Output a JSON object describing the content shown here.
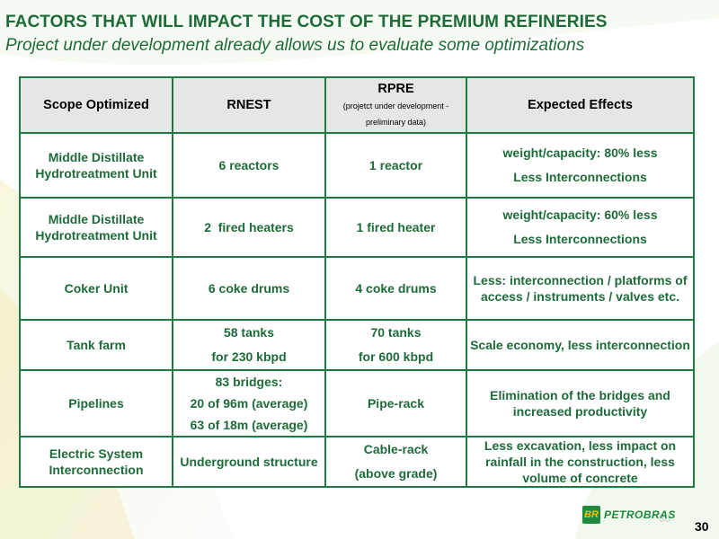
{
  "header": {
    "title": "FACTORS THAT WILL IMPACT THE COST OF THE PREMIUM REFINERIES",
    "subtitle": "Project under development already allows us to evaluate some optimizations"
  },
  "table": {
    "headers": {
      "scope": "Scope Optimized",
      "rnest": "RNEST",
      "rpre": "RPRE",
      "rpre_note": "(projetct under development - preliminary data)",
      "effects": "Expected Effects"
    },
    "rows": [
      {
        "scope": "Middle Distillate Hydrotreatment Unit",
        "rnest": [
          "6 reactors"
        ],
        "rpre": [
          "1 reactor"
        ],
        "effects": [
          "weight/capacity: 80% less",
          "Less Interconnections"
        ]
      },
      {
        "scope": "Middle Distillate Hydrotreatment Unit",
        "rnest": [
          "2  fired heaters"
        ],
        "rpre": [
          "1 fired heater"
        ],
        "effects": [
          "weight/capacity: 60% less",
          "Less Interconnections"
        ]
      },
      {
        "scope": "Coker Unit",
        "rnest": [
          "6 coke drums"
        ],
        "rpre": [
          "4 coke drums"
        ],
        "effects": [
          "Less: interconnection / platforms of access / instruments / valves etc."
        ]
      },
      {
        "scope": "Tank farm",
        "rnest": [
          "58 tanks",
          "for 230 kbpd"
        ],
        "rpre": [
          "70 tanks",
          "for 600 kbpd"
        ],
        "effects": [
          "Scale economy, less interconnection"
        ]
      },
      {
        "scope": "Pipelines",
        "rnest": [
          "83 bridges:",
          "20 of 96m (average)",
          "63 of 18m (average)"
        ],
        "rpre": [
          "Pipe-rack"
        ],
        "effects": [
          "Elimination of the bridges and increased productivity"
        ]
      },
      {
        "scope": "Electric System Interconnection",
        "rnest": [
          "Underground structure"
        ],
        "rpre": [
          "Cable-rack",
          "(above grade)"
        ],
        "effects": [
          "Less excavation, less impact on rainfall in the construction, less volume of concrete"
        ]
      }
    ]
  },
  "footer": {
    "logo_mark": "BR",
    "logo_text": "PETROBRAS",
    "ghost_number": "30",
    "page_number": "30"
  },
  "colors": {
    "accent": "#1e6b3a",
    "border": "#1e7a3e",
    "header_bg": "#e6e6e6",
    "logo_yellow": "#f3c300"
  }
}
